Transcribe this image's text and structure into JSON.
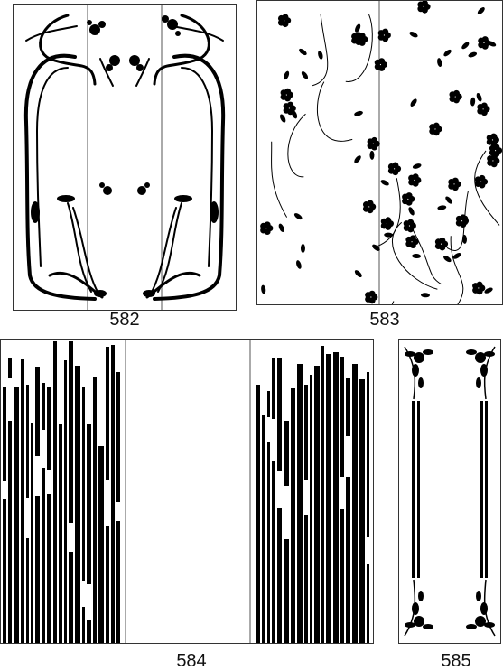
{
  "designs": [
    {
      "id": "582",
      "label": "582"
    },
    {
      "id": "583",
      "label": "583"
    },
    {
      "id": "584",
      "label": "584"
    },
    {
      "id": "585",
      "label": "585"
    }
  ],
  "colors": {
    "ink": "#000000",
    "paper": "#ffffff",
    "frame": "#333333"
  }
}
